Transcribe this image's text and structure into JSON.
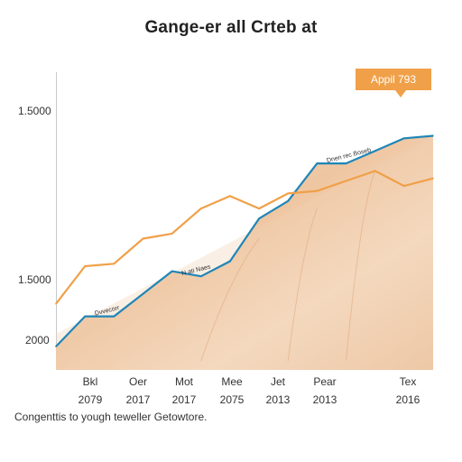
{
  "chart_data": {
    "type": "line",
    "title": "Gange-er all Crteb at",
    "y_tick_labels": [
      "1.5000",
      "1.5000",
      "2000"
    ],
    "x_tick_labels": [
      {
        "top": "Bkl",
        "bottom": "2079"
      },
      {
        "top": "Oer",
        "bottom": "2017"
      },
      {
        "top": "Mot",
        "bottom": "2017"
      },
      {
        "top": "Mee",
        "bottom": "2075"
      },
      {
        "top": "Jet",
        "bottom": "2013"
      },
      {
        "top": "Pear",
        "bottom": "2013"
      },
      {
        "top": "Tex",
        "bottom": "2016"
      }
    ],
    "series": [
      {
        "color": "#1f86b8",
        "values": [
          0,
          0.12,
          0.12,
          0.21,
          0.3,
          0.28,
          0.34,
          0.51,
          0.58,
          0.73,
          0.73,
          0.78,
          0.83,
          0.84
        ]
      },
      {
        "color": "#f0a048",
        "values": [
          0.17,
          0.32,
          0.33,
          0.43,
          0.45,
          0.55,
          0.6,
          0.55,
          0.61,
          0.62,
          0.66,
          0.7,
          0.64,
          0.67
        ]
      }
    ],
    "annotations": [
      {
        "text": "Dvvecorr",
        "series": 0,
        "point": 2
      },
      {
        "text": "N ati Naes",
        "series": 0,
        "point": 5
      },
      {
        "text": "Dnen rec Boseb",
        "series": 0,
        "point": 10
      }
    ],
    "callout": {
      "text": "Appil 793",
      "color": "#f0a048"
    },
    "grid": false,
    "background": "terrain texture"
  },
  "footer": {
    "caption": "Congenttis to yough teweller Getowtore."
  }
}
